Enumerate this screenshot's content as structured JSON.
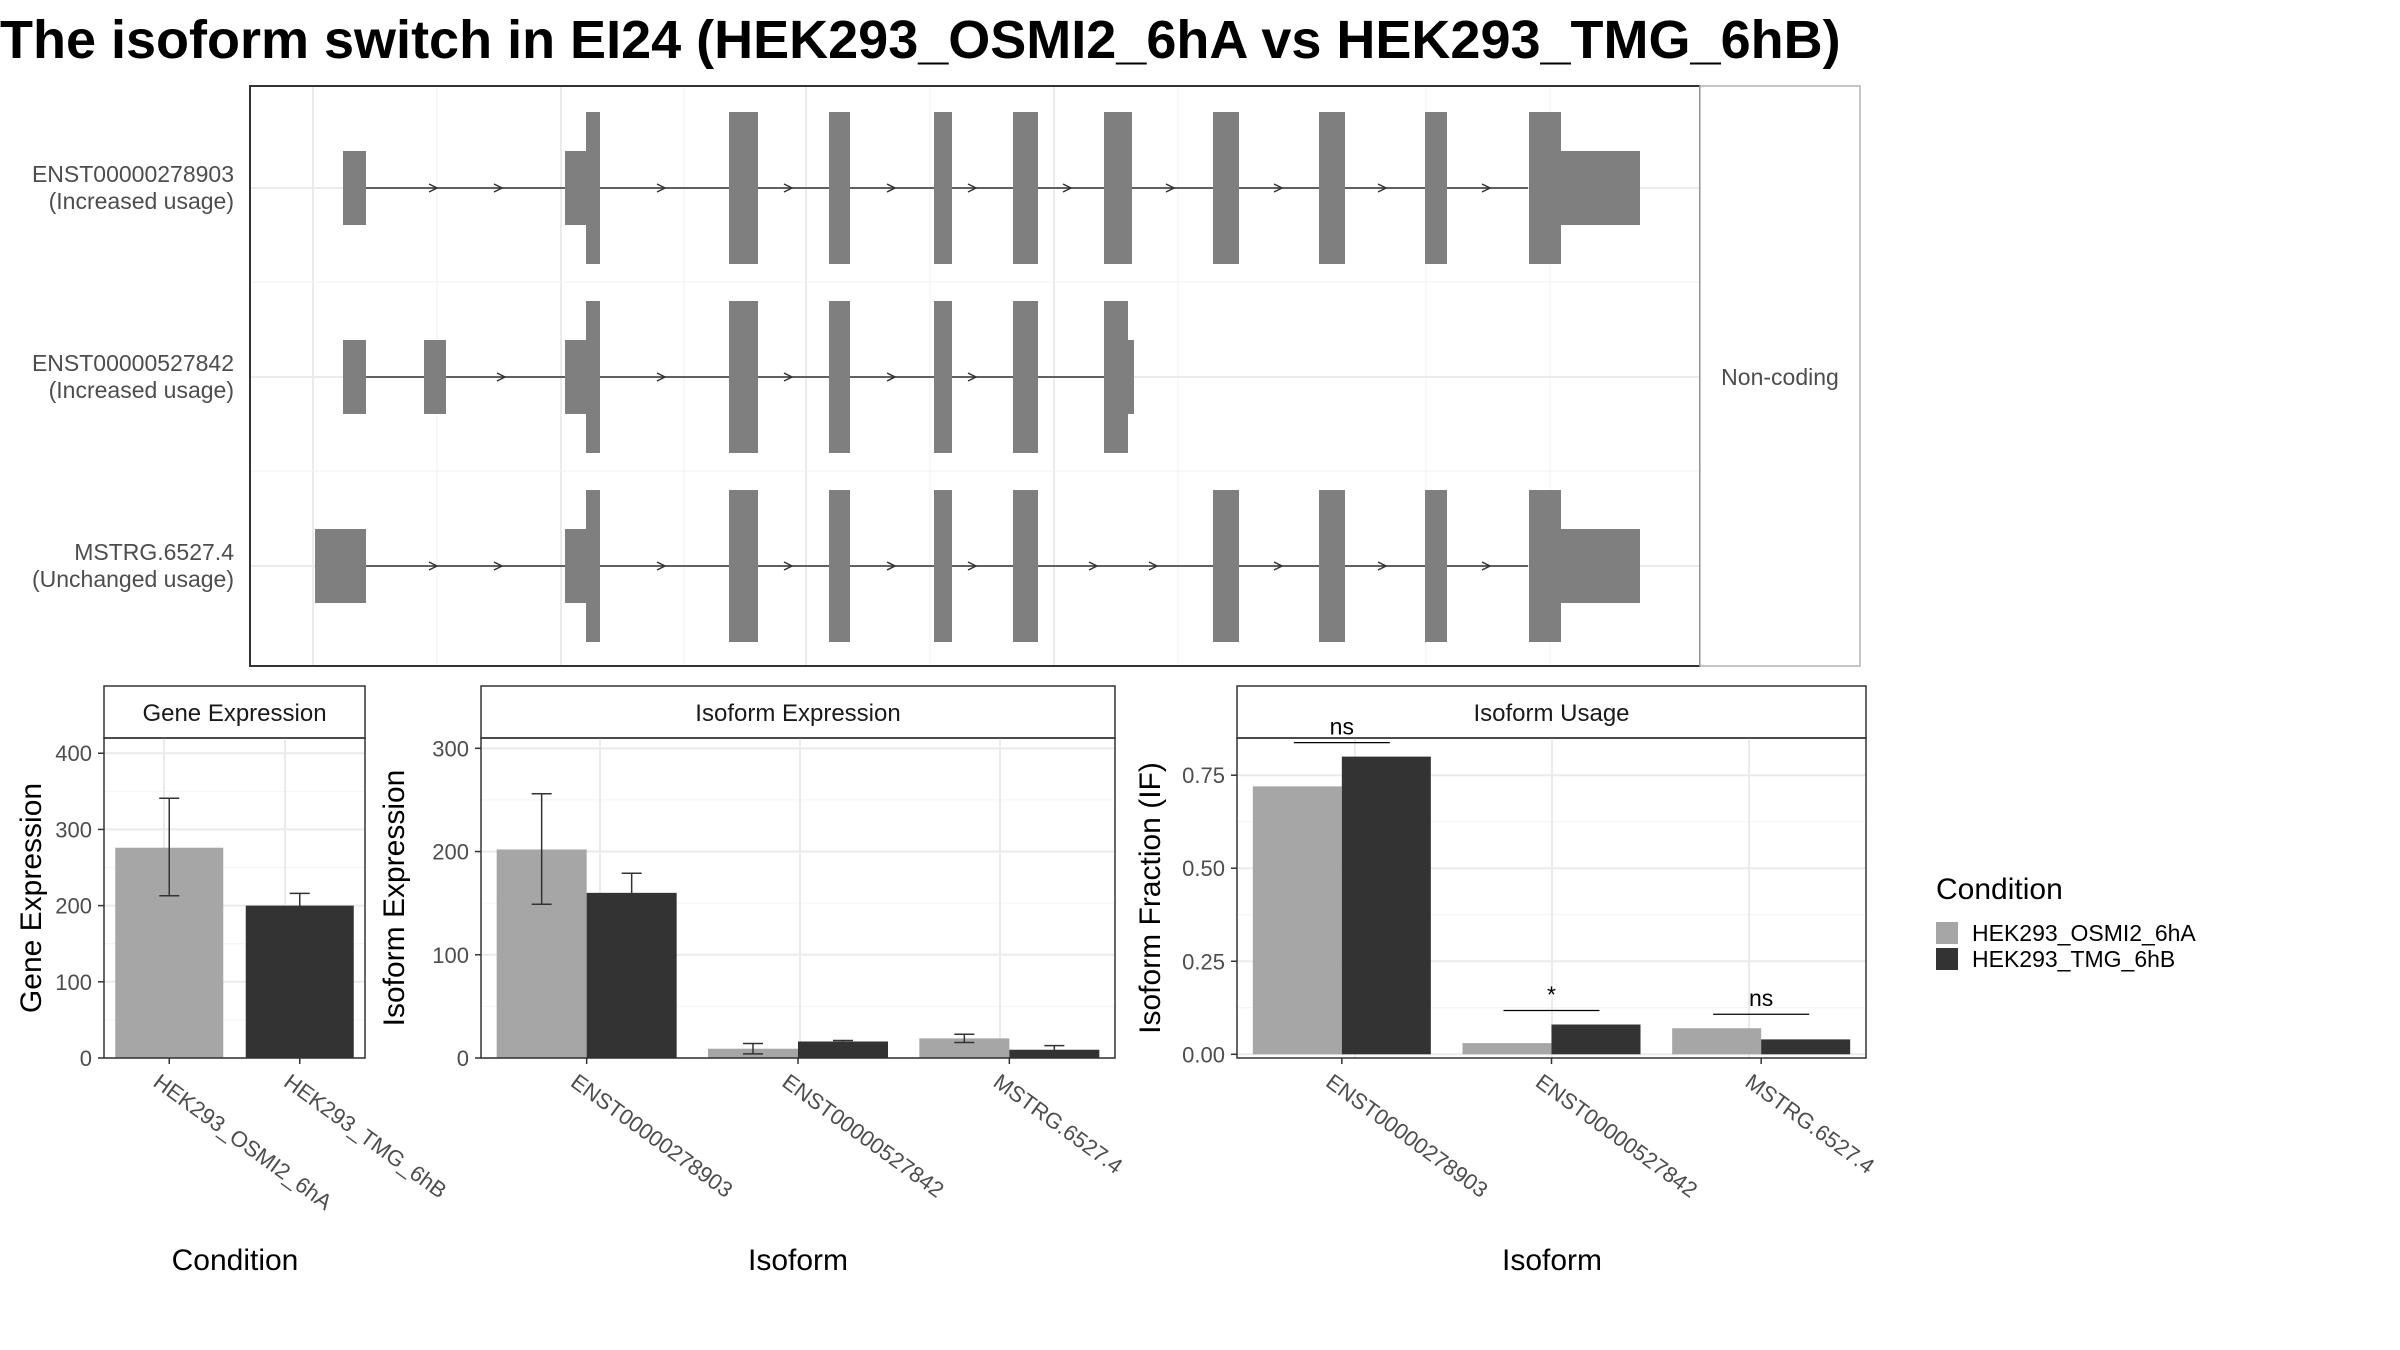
{
  "title": "The isoform switch in EI24 (HEK293_OSMI2_6hA vs HEK293_TMG_6hB)",
  "colors": {
    "cond1": "#a6a6a6",
    "cond2": "#333333",
    "exon": "#7f7f7f"
  },
  "structure": {
    "facet_label": "Non-coding",
    "isoforms": [
      {
        "id": "ENST00000278903",
        "status": "(Increased usage)"
      },
      {
        "id": "ENST00000527842",
        "status": "(Increased usage)"
      },
      {
        "id": "MSTRG.6527.4",
        "status": "(Unchanged usage)"
      }
    ]
  },
  "legend": {
    "title": "Condition",
    "items": [
      "HEK293_OSMI2_6hA",
      "HEK293_TMG_6hB"
    ]
  },
  "chart_data": [
    {
      "type": "bar",
      "title": "Gene Expression",
      "xlabel": "Condition",
      "ylabel": "Gene Expression",
      "ylim": [
        0,
        420
      ],
      "yticks": [
        0,
        100,
        200,
        300,
        400
      ],
      "categories": [
        "HEK293_OSMI2_6hA",
        "HEK293_TMG_6hB"
      ],
      "values": [
        276,
        200
      ],
      "errors": [
        [
          213,
          341
        ],
        [
          186,
          216
        ]
      ]
    },
    {
      "type": "bar",
      "title": "Isoform Expression",
      "xlabel": "Isoform",
      "ylabel": "Isoform Expression",
      "ylim": [
        0,
        310
      ],
      "yticks": [
        0,
        100,
        200,
        300
      ],
      "categories": [
        "ENST00000278903",
        "ENST00000527842",
        "MSTRG.6527.4"
      ],
      "series": [
        {
          "name": "HEK293_OSMI2_6hA",
          "values": [
            202,
            9,
            19
          ],
          "errors": [
            [
              149,
              256
            ],
            [
              4,
              14
            ],
            [
              15,
              23
            ]
          ]
        },
        {
          "name": "HEK293_TMG_6hB",
          "values": [
            160,
            16,
            8
          ],
          "errors": [
            [
              141,
              179
            ],
            [
              15,
              17
            ],
            [
              4,
              12
            ]
          ]
        }
      ]
    },
    {
      "type": "bar",
      "title": "Isoform Usage",
      "xlabel": "Isoform",
      "ylabel": "Isoform Fraction (IF)",
      "ylim": [
        -0.01,
        0.85
      ],
      "yticks": [
        "0.00",
        "0.25",
        "0.50",
        "0.75"
      ],
      "categories": [
        "ENST00000278903",
        "ENST00000527842",
        "MSTRG.6527.4"
      ],
      "series": [
        {
          "name": "HEK293_OSMI2_6hA",
          "values": [
            0.72,
            0.03,
            0.07
          ]
        },
        {
          "name": "HEK293_TMG_6hB",
          "values": [
            0.8,
            0.08,
            0.04
          ]
        }
      ],
      "significance": [
        "ns",
        "*",
        "ns"
      ]
    }
  ]
}
